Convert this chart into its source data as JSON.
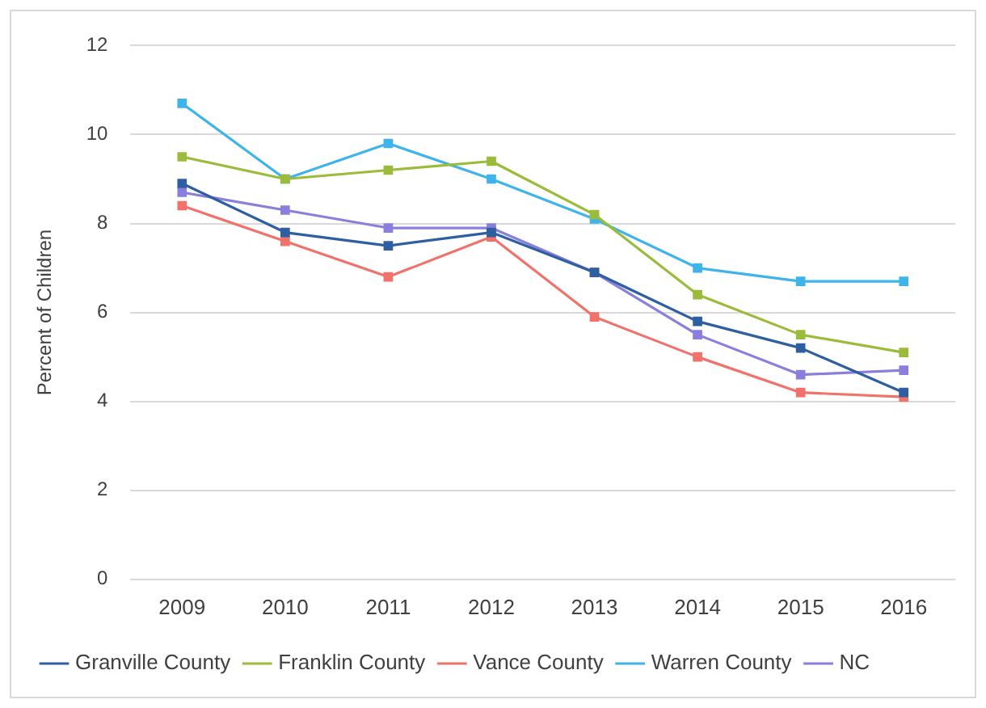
{
  "chart_data": {
    "type": "line",
    "ylabel": "Percent of Children",
    "categories": [
      "2009",
      "2010",
      "2011",
      "2012",
      "2013",
      "2014",
      "2015",
      "2016"
    ],
    "series": [
      {
        "name": "Granville County",
        "color": "#2e5fa0",
        "values": [
          8.9,
          7.8,
          7.5,
          7.8,
          6.9,
          5.8,
          5.2,
          4.2
        ]
      },
      {
        "name": "Franklin County",
        "color": "#9bbb3b",
        "values": [
          9.5,
          9.0,
          9.2,
          9.4,
          8.2,
          6.4,
          5.5,
          5.1
        ]
      },
      {
        "name": "Vance County",
        "color": "#f0726a",
        "values": [
          8.4,
          7.6,
          6.8,
          7.7,
          5.9,
          5.0,
          4.2,
          4.1
        ]
      },
      {
        "name": "Warren County",
        "color": "#3fb4ea",
        "values": [
          10.7,
          9.0,
          9.8,
          9.0,
          8.1,
          7.0,
          6.7,
          6.7
        ]
      },
      {
        "name": "NC",
        "color": "#8a7fdd",
        "values": [
          8.7,
          8.3,
          7.9,
          7.9,
          6.9,
          5.5,
          4.6,
          4.7
        ]
      }
    ],
    "ylim": [
      0,
      12
    ],
    "yticks": [
      0,
      2,
      4,
      6,
      8,
      10,
      12
    ],
    "grid": "y",
    "legend": "bottom",
    "marker": "square",
    "line_style": "solid"
  }
}
